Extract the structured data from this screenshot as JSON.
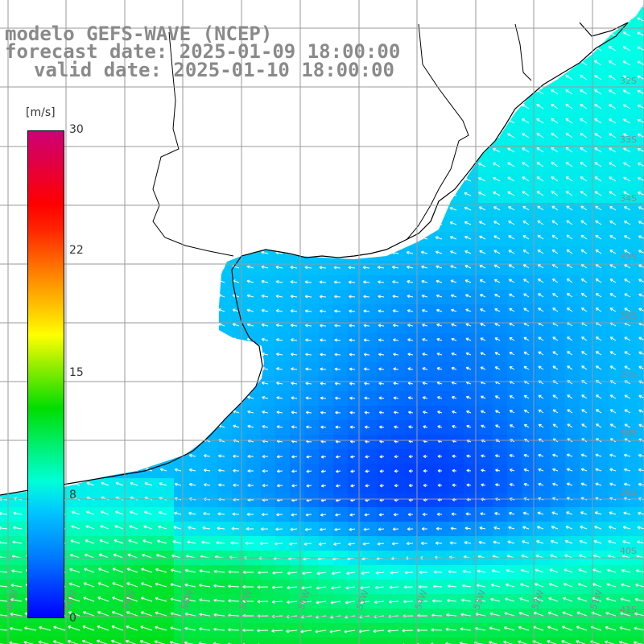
{
  "titles": {
    "line1": "modelo GEFS-WAVE (NCEP)",
    "line2": "forecast date: 2025-01-09 18:00:00",
    "line3": "valid date: 2025-01-10 18:00:00"
  },
  "colorbar": {
    "unit": "[m/s]",
    "ticks": [
      "30",
      "22",
      "15",
      "8",
      "0"
    ],
    "colors": [
      "#0000ff",
      "#00c8ff",
      "#00ffd8",
      "#00dd00",
      "#ffff00",
      "#ff8800",
      "#ff0000",
      "#cc0077"
    ]
  },
  "map": {
    "lat_labels": [
      "32S",
      "33S",
      "34S",
      "35S",
      "36S",
      "37S",
      "38S",
      "39S",
      "40S",
      "41S"
    ],
    "lon_labels": [
      "61W",
      "60W",
      "59W",
      "58W",
      "57W",
      "56W",
      "55W",
      "54W",
      "53W",
      "52W",
      "51W"
    ],
    "land_color": "#ffffff",
    "grid_color": "#9a9a9a",
    "arrow_color": "#ffffff"
  }
}
